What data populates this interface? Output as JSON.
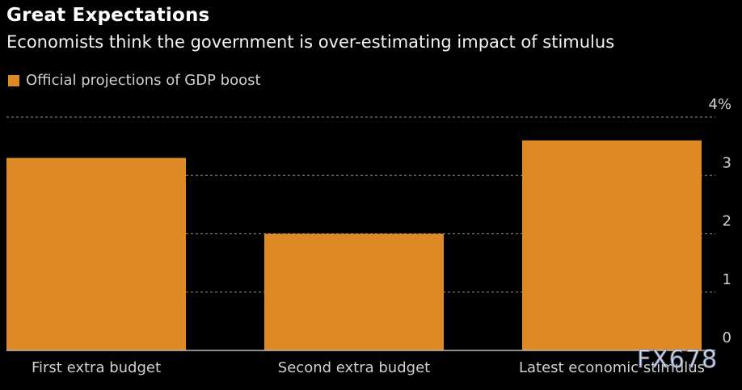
{
  "chart_data": {
    "type": "bar",
    "title": "Great Expectations",
    "subtitle": "Economists think the government is over-estimating impact of stimulus",
    "legend": [
      {
        "name": "Official projections of GDP boost",
        "color": "#dd8925"
      }
    ],
    "legend_placement": "top-left",
    "categories": [
      "First extra budget",
      "Second extra budget",
      "Latest economic stimulus"
    ],
    "values": [
      3.3,
      2.0,
      3.6
    ],
    "unit": "%",
    "ylim": [
      0,
      4
    ],
    "yticks": [
      {
        "value": 0,
        "label": "0"
      },
      {
        "value": 1,
        "label": "1"
      },
      {
        "value": 2,
        "label": "2"
      },
      {
        "value": 3,
        "label": "3"
      },
      {
        "value": 4,
        "label": "4%"
      }
    ],
    "y_axis_side": "right",
    "grid": true,
    "xlabel": "",
    "ylabel": "",
    "bar_color": "#dd8925"
  },
  "watermark": "FX678"
}
